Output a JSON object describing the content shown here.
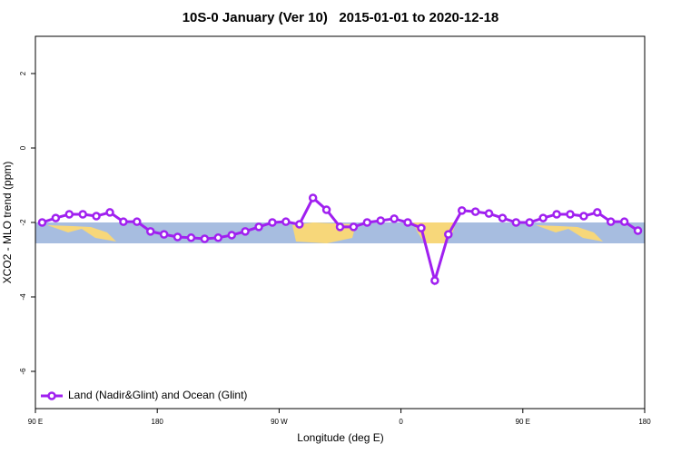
{
  "chart_data": {
    "type": "line",
    "title": "10S-0 January (Ver 10)   2015-01-01 to 2020-12-18",
    "x_label": "Longitude (deg E)",
    "y_label": "XCO2 - MLO trend (ppm)",
    "x": [
      95,
      105,
      115,
      125,
      135,
      145,
      155,
      165,
      175,
      185,
      195,
      205,
      215,
      225,
      235,
      245,
      255,
      265,
      275,
      285,
      295,
      305,
      315,
      325,
      335,
      345,
      355,
      365,
      375,
      385,
      395,
      405,
      415,
      425,
      435,
      445,
      455,
      465,
      475,
      485,
      495,
      505,
      515,
      525,
      535
    ],
    "series": [
      {
        "name": "Land (Nadir&Glint) and Ocean (Glint)",
        "color": "#a020f0",
        "values": [
          -2.0,
          -1.88,
          -1.78,
          -1.78,
          -1.83,
          -1.73,
          -1.98,
          -1.98,
          -2.24,
          -2.32,
          -2.39,
          -2.41,
          -2.44,
          -2.41,
          -2.34,
          -2.24,
          -2.12,
          -2.0,
          -1.98,
          -2.05,
          -1.34,
          -1.66,
          -2.12,
          -2.12,
          -2.0,
          -1.95,
          -1.9,
          -2.0,
          -2.15,
          -3.56,
          -2.32,
          -1.68,
          -1.71,
          -1.76,
          -1.88,
          -2.0,
          -2.0,
          -1.88,
          -1.78,
          -1.78,
          -1.83,
          -1.73,
          -1.98,
          -1.98,
          -2.22
        ]
      }
    ],
    "xlim": [
      90,
      540
    ],
    "xticks": [
      {
        "value": 90,
        "label": "90 E"
      },
      {
        "value": 180,
        "label": "180"
      },
      {
        "value": 270,
        "label": "90 W"
      },
      {
        "value": 360,
        "label": "0"
      },
      {
        "value": 450,
        "label": "90 E"
      },
      {
        "value": 540,
        "label": "180"
      }
    ],
    "ylim": [
      -7,
      3
    ],
    "yticks": [
      -6,
      -4,
      -2,
      0,
      2
    ],
    "legend": "bottom-left"
  }
}
